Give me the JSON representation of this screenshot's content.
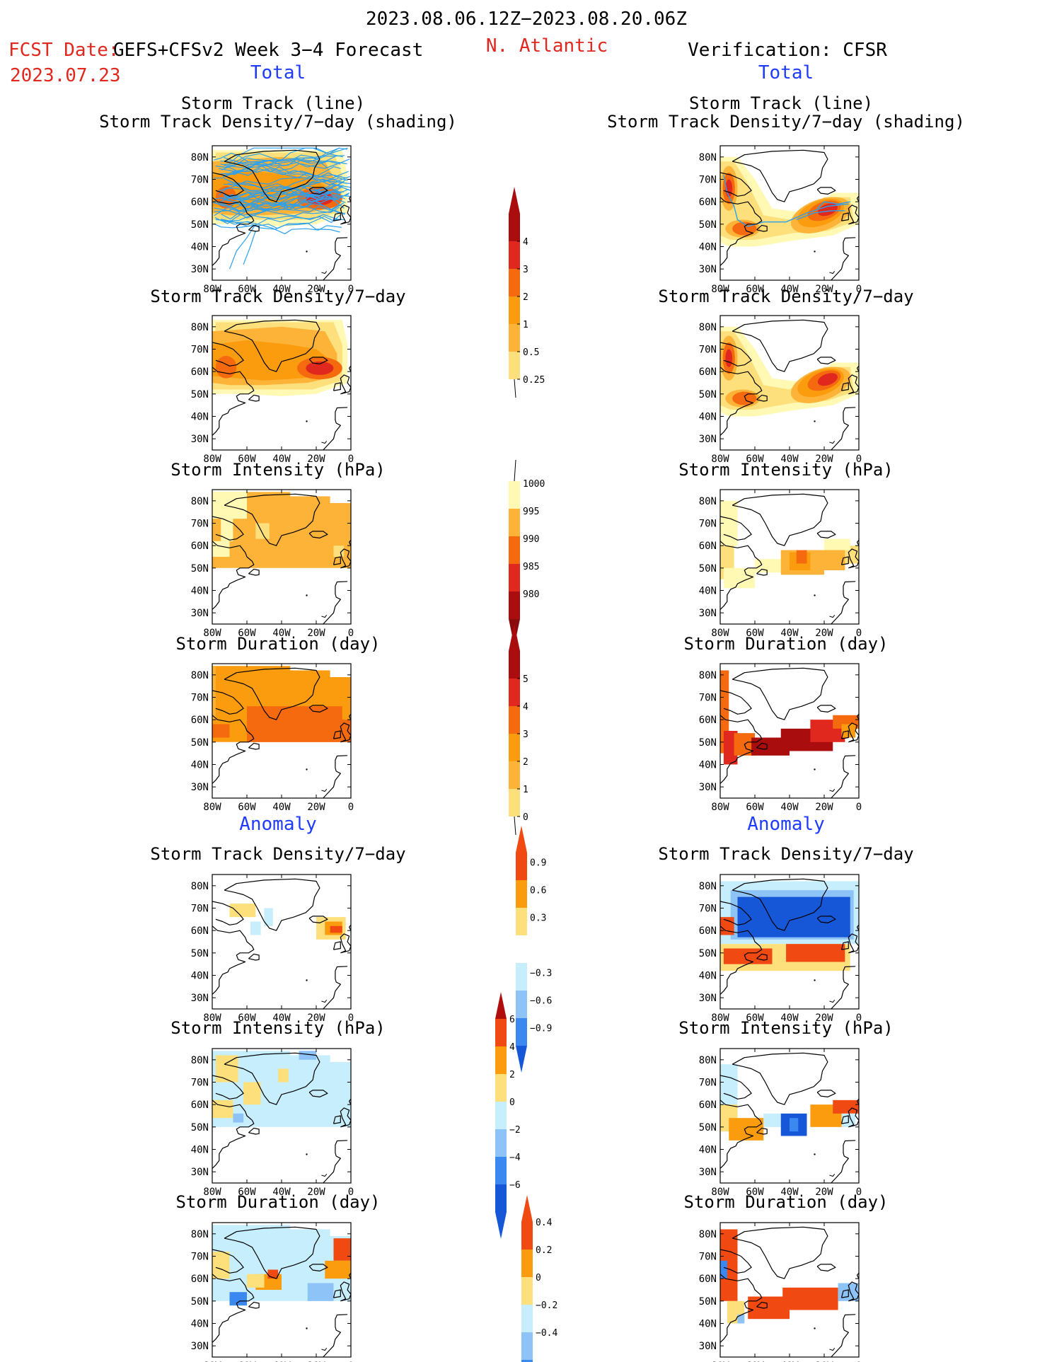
{
  "header": {
    "date_range": "2023.08.06.12Z−2023.08.20.06Z",
    "fcst_label": "FCST Date:",
    "model_label": "GEFS+CFSv2 Week 3−4 Forecast",
    "fcst_date": "2023.07.23",
    "region": "N. Atlantic",
    "verification": "Verification: CFSR",
    "left_section_total": "Total",
    "right_section_total": "Total",
    "left_section_anomaly": "Anomaly",
    "right_section_anomaly": "Anomaly"
  },
  "panel_titles": {
    "track_line": "Storm Track (line)",
    "track_shading": "Storm Track Density/7−day (shading)",
    "density": "Storm Track Density/7−day",
    "intensity": "Storm Intensity (hPa)",
    "duration": "Storm Duration (day)"
  },
  "map_axes": {
    "lat_ticks": [
      "80N",
      "70N",
      "60N",
      "50N",
      "40N",
      "30N"
    ],
    "lon_ticks": [
      "80W",
      "60W",
      "40W",
      "20W",
      "0"
    ]
  },
  "colors": {
    "total_scale": [
      "#fff9b4",
      "#fde07b",
      "#fcb337",
      "#fb9b0e",
      "#f56a0e",
      "#e0281e",
      "#a90d0d"
    ],
    "anomaly_scale": [
      "#1657d8",
      "#3b88f0",
      "#8ec3f8",
      "#c6eefc",
      "#ffffff",
      "#fde07b",
      "#fb9b0e",
      "#f04a12"
    ],
    "track_line": "#2aa0f0"
  },
  "chart_data": [
    {
      "type": "heatmap",
      "panel": "Forecast Storm Track (line) + Density/7-day (shading)",
      "xlabel": "",
      "ylabel": "",
      "xlim": [
        -80,
        0
      ],
      "ylim": [
        25,
        85
      ],
      "levels": [
        0.25,
        0.5,
        1,
        2,
        3,
        4
      ]
    },
    {
      "type": "heatmap",
      "panel": "Verification Storm Track (line) + Density/7-day (shading)",
      "xlim": [
        -80,
        0
      ],
      "ylim": [
        25,
        85
      ],
      "levels": [
        0.25,
        0.5,
        1,
        2,
        3,
        4
      ]
    },
    {
      "type": "heatmap",
      "panel": "Forecast Storm Track Density/7-day",
      "levels": [
        0.25,
        0.5,
        1,
        2,
        3,
        4
      ]
    },
    {
      "type": "heatmap",
      "panel": "Verification Storm Track Density/7-day",
      "levels": [
        0.25,
        0.5,
        1,
        2,
        3,
        4
      ]
    },
    {
      "type": "heatmap",
      "panel": "Forecast Storm Intensity (hPa)",
      "levels": [
        1000,
        995,
        990,
        985,
        980
      ]
    },
    {
      "type": "heatmap",
      "panel": "Verification Storm Intensity (hPa)",
      "levels": [
        1000,
        995,
        990,
        985,
        980
      ]
    },
    {
      "type": "heatmap",
      "panel": "Forecast Storm Duration (day)",
      "levels": [
        0,
        1,
        2,
        3,
        4,
        5
      ]
    },
    {
      "type": "heatmap",
      "panel": "Verification Storm Duration (day)",
      "levels": [
        0,
        1,
        2,
        3,
        4,
        5
      ]
    },
    {
      "type": "heatmap",
      "panel": "Forecast Anomaly Storm Track Density/7-day",
      "levels": [
        -0.9,
        -0.6,
        -0.3,
        0.3,
        0.6,
        0.9
      ]
    },
    {
      "type": "heatmap",
      "panel": "Verification Anomaly Storm Track Density/7-day",
      "levels": [
        -0.9,
        -0.6,
        -0.3,
        0.3,
        0.6,
        0.9
      ]
    },
    {
      "type": "heatmap",
      "panel": "Forecast Anomaly Storm Intensity (hPa)",
      "levels": [
        -6,
        -4,
        -2,
        0,
        2,
        4,
        6
      ]
    },
    {
      "type": "heatmap",
      "panel": "Verification Anomaly Storm Intensity (hPa)",
      "levels": [
        -6,
        -4,
        -2,
        0,
        2,
        4,
        6
      ]
    },
    {
      "type": "heatmap",
      "panel": "Forecast Anomaly Storm Duration (day)",
      "levels": [
        -0.4,
        -0.2,
        0,
        0.2,
        0.4
      ]
    },
    {
      "type": "heatmap",
      "panel": "Verification Anomaly Storm Duration (day)",
      "levels": [
        -0.4,
        -0.2,
        0,
        0.2,
        0.4
      ]
    }
  ],
  "colorbars": {
    "density": [
      "4",
      "3",
      "2",
      "1",
      "0.5",
      "0.25"
    ],
    "intensity": [
      "1000",
      "995",
      "990",
      "985",
      "980"
    ],
    "duration": [
      "5",
      "4",
      "3",
      "2",
      "1",
      "0"
    ],
    "density_anom": [
      "0.9",
      "0.6",
      "0.3",
      "−0.3",
      "−0.6",
      "−0.9"
    ],
    "intensity_anom": [
      "6",
      "4",
      "2",
      "0",
      "−2",
      "−4",
      "−6"
    ],
    "duration_anom": [
      "0.4",
      "0.2",
      "0",
      "−0.2",
      "−0.4"
    ]
  }
}
